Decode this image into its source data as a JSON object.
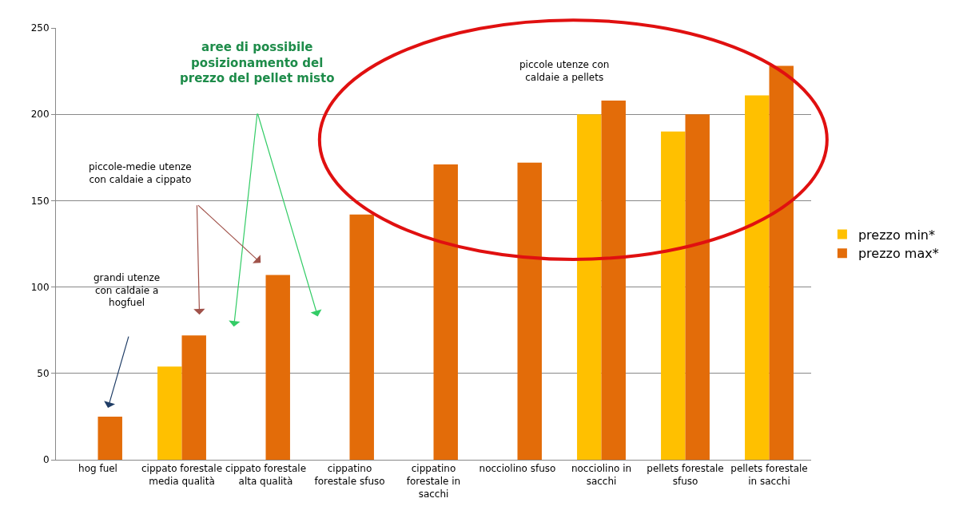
{
  "chart_data": {
    "type": "bar",
    "categories": [
      "hog fuel",
      "cippato forestale media qualità",
      "cippato forestale alta qualità",
      "cippatino forestale sfuso",
      "cippatino forestale in sacchi",
      "nocciolino sfuso",
      "nocciolino in sacchi",
      "pellets forestale sfuso",
      "pellets forestale in sacchi"
    ],
    "series": [
      {
        "name": "prezzo min*",
        "color": "#ffc000",
        "values": [
          null,
          54,
          null,
          null,
          null,
          null,
          200,
          190,
          211
        ]
      },
      {
        "name": "prezzo max*",
        "color": "#e36c09",
        "values": [
          25,
          72,
          107,
          142,
          171,
          172,
          208,
          200,
          228
        ]
      }
    ],
    "ylim": [
      0,
      250
    ],
    "yticks": [
      0,
      50,
      100,
      150,
      200,
      250
    ],
    "grid": "y",
    "legend": "right",
    "annotations": [
      "aree di possibile posizionamento del prezzo del pellet misto",
      "piccole-medie utenze con caldaie a cippato",
      "grandi utenze con caldaie a hogfuel",
      "piccole utenze con caldaie a pellets"
    ]
  }
}
